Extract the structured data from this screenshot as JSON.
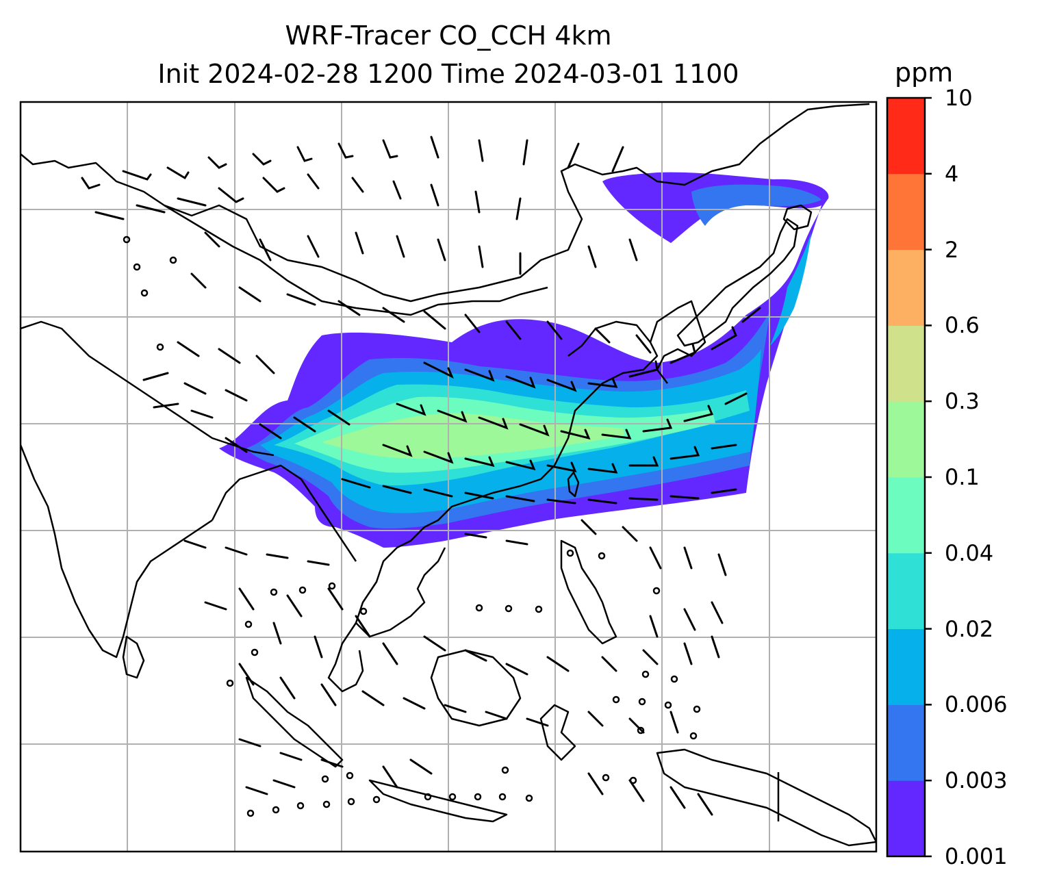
{
  "title_line1": "WRF-Tracer CO_CCH 4km",
  "title_line2": "Init 2024-02-28 1200 Time 2024-03-01 1100",
  "colorbar": {
    "unit": "ppm",
    "ticks": [
      "0.001",
      "0.003",
      "0.006",
      "0.02",
      "0.04",
      "0.1",
      "0.3",
      "0.6",
      "2",
      "4",
      "10"
    ],
    "colors": [
      "#6228ff",
      "#3476f0",
      "#06b0ea",
      "#2ee0d6",
      "#6cfcc0",
      "#9cf898",
      "#cfe18a",
      "#fdb062",
      "#ff7538",
      "#ff2a18"
    ]
  },
  "map": {
    "gridlines": true,
    "grid_color": "#b0b0b0",
    "coastline_color": "#000000",
    "wind_barbs": true
  }
}
